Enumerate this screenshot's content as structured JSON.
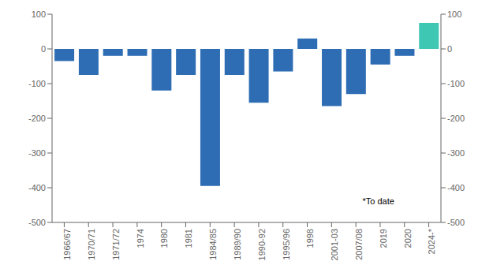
{
  "chart_data": {
    "type": "bar",
    "categories": [
      "1966/67",
      "1970/71",
      "1971/72",
      "1974",
      "1980",
      "1981",
      "1984/85",
      "1989/90",
      "1990-92",
      "1995/96",
      "1998",
      "2001-03",
      "2007/08",
      "2019",
      "2020",
      "2024-*"
    ],
    "values": [
      -35,
      -75,
      -20,
      -20,
      -120,
      -75,
      -395,
      -75,
      -155,
      -65,
      30,
      -165,
      -130,
      -45,
      -20,
      75
    ],
    "colors": [
      "#2E6DB4",
      "#2E6DB4",
      "#2E6DB4",
      "#2E6DB4",
      "#2E6DB4",
      "#2E6DB4",
      "#2E6DB4",
      "#2E6DB4",
      "#2E6DB4",
      "#2E6DB4",
      "#2E6DB4",
      "#2E6DB4",
      "#2E6DB4",
      "#2E6DB4",
      "#2E6DB4",
      "#3EC8B4"
    ],
    "ylim": [
      -500,
      100
    ],
    "yticks": [
      -500,
      -400,
      -300,
      -200,
      -100,
      0,
      100
    ],
    "y2lim": [
      -500,
      100
    ],
    "y2ticks": [
      -500,
      -400,
      -300,
      -200,
      -100,
      0,
      100
    ],
    "annotation": "*To date"
  }
}
